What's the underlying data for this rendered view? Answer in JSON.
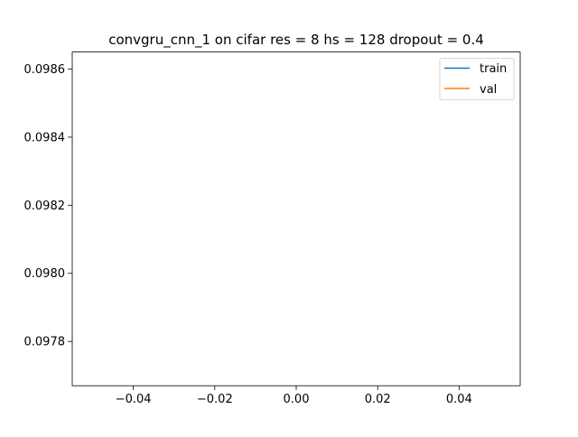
{
  "chart_data": {
    "type": "line",
    "title": "convgru_cnn_1 on cifar res = 8 hs = 128 dropout = 0.4",
    "xlabel": "",
    "ylabel": "",
    "xlim": [
      -0.055,
      0.055
    ],
    "ylim": [
      0.09767,
      0.09865
    ],
    "xticks": [
      -0.04,
      -0.02,
      0.0,
      0.02,
      0.04
    ],
    "xtick_labels": [
      "−0.04",
      "−0.02",
      "0.00",
      "0.02",
      "0.04"
    ],
    "yticks": [
      0.0978,
      0.098,
      0.0982,
      0.0984,
      0.0986
    ],
    "ytick_labels": [
      "0.0978",
      "0.0980",
      "0.0982",
      "0.0984",
      "0.0986"
    ],
    "grid": false,
    "legend_position": "top-right",
    "series": [
      {
        "name": "train",
        "color": "#1f77b4",
        "x": [],
        "y": []
      },
      {
        "name": "val",
        "color": "#ff7f0e",
        "x": [],
        "y": []
      }
    ]
  }
}
